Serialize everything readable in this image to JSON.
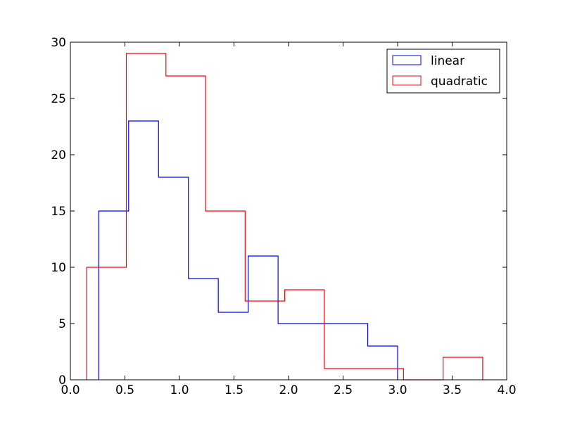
{
  "chart_data": {
    "type": "histogram",
    "histtype": "step",
    "title": "",
    "xlabel": "",
    "ylabel": "",
    "xlim": [
      0.0,
      4.0
    ],
    "ylim": [
      0,
      30
    ],
    "xticks": [
      "0.0",
      "0.5",
      "1.0",
      "1.5",
      "2.0",
      "2.5",
      "3.0",
      "3.5",
      "4.0"
    ],
    "yticks": [
      "0",
      "5",
      "10",
      "15",
      "20",
      "25",
      "30"
    ],
    "grid": false,
    "legend_position": "upper right",
    "series": [
      {
        "name": "linear",
        "color": "#0000ff",
        "bin_edges": [
          0.26,
          0.534,
          0.808,
          1.082,
          1.356,
          1.63,
          1.904,
          2.178,
          2.452,
          2.726,
          3.0
        ],
        "counts": [
          15,
          23,
          18,
          9,
          6,
          11,
          5,
          5,
          5,
          3
        ]
      },
      {
        "name": "quadratic",
        "color": "#ff0000",
        "bin_edges": [
          0.15,
          0.513,
          0.876,
          1.239,
          1.602,
          1.965,
          2.328,
          2.691,
          3.054,
          3.417,
          3.78
        ],
        "counts": [
          10,
          29,
          27,
          15,
          7,
          8,
          1,
          1,
          0,
          2
        ]
      }
    ]
  }
}
